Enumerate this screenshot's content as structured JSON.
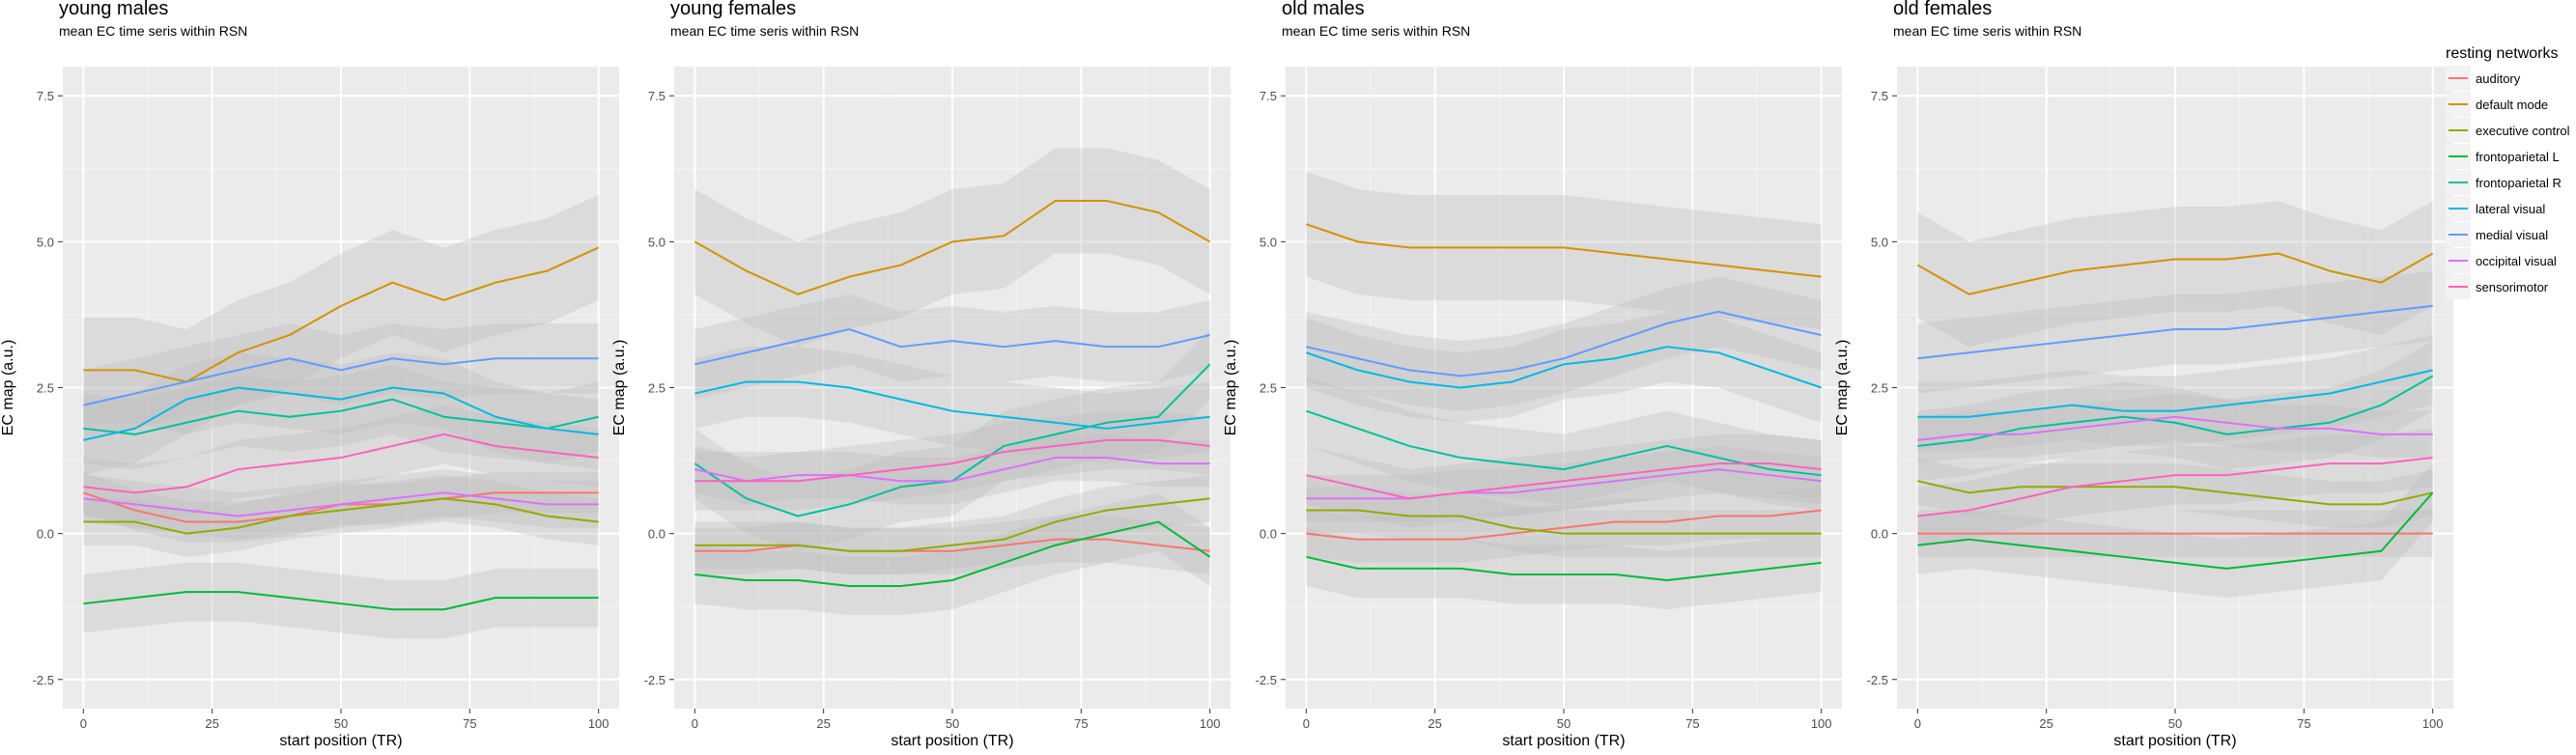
{
  "chart_data": [
    {
      "type": "line",
      "title": "young males",
      "subtitle": "mean EC time seris within RSN",
      "xlabel": "start position (TR)",
      "ylabel": "EC map (a.u.)",
      "xlim": [
        -4,
        104
      ],
      "ylim": [
        -3.0,
        8.0
      ],
      "x_ticks": [
        0,
        25,
        50,
        75,
        100
      ],
      "y_ticks": [
        -2.5,
        0.0,
        2.5,
        5.0,
        7.5
      ],
      "y_tick_labels": [
        "-2.5",
        "0.0",
        "2.5",
        "5.0",
        "7.5"
      ],
      "x": [
        0,
        10,
        20,
        30,
        40,
        50,
        60,
        70,
        80,
        90,
        100
      ],
      "series": [
        {
          "name": "auditory",
          "values": [
            0.7,
            0.4,
            0.2,
            0.2,
            0.3,
            0.5,
            0.5,
            0.6,
            0.7,
            0.7,
            0.7
          ],
          "band": 0.35
        },
        {
          "name": "default mode",
          "values": [
            2.8,
            2.8,
            2.6,
            3.1,
            3.4,
            3.9,
            4.3,
            4.0,
            4.3,
            4.5,
            4.9
          ],
          "band": 0.9
        },
        {
          "name": "executive control",
          "values": [
            0.2,
            0.2,
            0.0,
            0.1,
            0.3,
            0.4,
            0.5,
            0.6,
            0.5,
            0.3,
            0.2
          ],
          "band": 0.4
        },
        {
          "name": "frontoparietal L",
          "values": [
            -1.2,
            -1.1,
            -1.0,
            -1.0,
            -1.1,
            -1.2,
            -1.3,
            -1.3,
            -1.1,
            -1.1,
            -1.1
          ],
          "band": 0.5
        },
        {
          "name": "frontoparietal R",
          "values": [
            1.8,
            1.7,
            1.9,
            2.1,
            2.0,
            2.1,
            2.3,
            2.0,
            1.9,
            1.8,
            2.0
          ],
          "band": 0.6
        },
        {
          "name": "lateral visual",
          "values": [
            1.6,
            1.8,
            2.3,
            2.5,
            2.4,
            2.3,
            2.5,
            2.4,
            2.0,
            1.8,
            1.7
          ],
          "band": 0.6
        },
        {
          "name": "medial visual",
          "values": [
            2.2,
            2.4,
            2.6,
            2.8,
            3.0,
            2.8,
            3.0,
            2.9,
            3.0,
            3.0,
            3.0
          ],
          "band": 0.6
        },
        {
          "name": "occipital visual",
          "values": [
            0.6,
            0.5,
            0.4,
            0.3,
            0.4,
            0.5,
            0.6,
            0.7,
            0.6,
            0.5,
            0.5
          ],
          "band": 0.4
        },
        {
          "name": "sensorimotor",
          "values": [
            0.8,
            0.7,
            0.8,
            1.1,
            1.2,
            1.3,
            1.5,
            1.7,
            1.5,
            1.4,
            1.3
          ],
          "band": 0.5
        }
      ]
    },
    {
      "type": "line",
      "title": "young females",
      "subtitle": "mean EC time seris within RSN",
      "xlabel": "start position (TR)",
      "ylabel": "EC map (a.u.)",
      "xlim": [
        -4,
        104
      ],
      "ylim": [
        -3.0,
        8.0
      ],
      "x_ticks": [
        0,
        25,
        50,
        75,
        100
      ],
      "y_ticks": [
        -2.5,
        0.0,
        2.5,
        5.0,
        7.5
      ],
      "y_tick_labels": [
        "-2.5",
        "0.0",
        "2.5",
        "5.0",
        "7.5"
      ],
      "x": [
        0,
        10,
        20,
        30,
        40,
        50,
        60,
        70,
        80,
        90,
        100
      ],
      "series": [
        {
          "name": "auditory",
          "values": [
            -0.3,
            -0.3,
            -0.2,
            -0.3,
            -0.3,
            -0.3,
            -0.2,
            -0.1,
            -0.1,
            -0.2,
            -0.3
          ],
          "band": 0.4
        },
        {
          "name": "default mode",
          "values": [
            5.0,
            4.5,
            4.1,
            4.4,
            4.6,
            5.0,
            5.1,
            5.7,
            5.7,
            5.5,
            5.0
          ],
          "band": 0.9
        },
        {
          "name": "executive control",
          "values": [
            -0.2,
            -0.2,
            -0.2,
            -0.3,
            -0.3,
            -0.2,
            -0.1,
            0.2,
            0.4,
            0.5,
            0.6
          ],
          "band": 0.4
        },
        {
          "name": "frontoparietal L",
          "values": [
            -0.7,
            -0.8,
            -0.8,
            -0.9,
            -0.9,
            -0.8,
            -0.5,
            -0.2,
            0.0,
            0.2,
            -0.4
          ],
          "band": 0.5
        },
        {
          "name": "frontoparietal R",
          "values": [
            1.2,
            0.6,
            0.3,
            0.5,
            0.8,
            0.9,
            1.5,
            1.7,
            1.9,
            2.0,
            2.9
          ],
          "band": 0.6
        },
        {
          "name": "lateral visual",
          "values": [
            2.4,
            2.6,
            2.6,
            2.5,
            2.3,
            2.1,
            2.0,
            1.9,
            1.8,
            1.9,
            2.0
          ],
          "band": 0.6
        },
        {
          "name": "medial visual",
          "values": [
            2.9,
            3.1,
            3.3,
            3.5,
            3.2,
            3.3,
            3.2,
            3.3,
            3.2,
            3.2,
            3.4
          ],
          "band": 0.6
        },
        {
          "name": "occipital visual",
          "values": [
            1.1,
            0.9,
            1.0,
            1.0,
            0.9,
            0.9,
            1.1,
            1.3,
            1.3,
            1.2,
            1.2
          ],
          "band": 0.4
        },
        {
          "name": "sensorimotor",
          "values": [
            0.9,
            0.9,
            0.9,
            1.0,
            1.1,
            1.2,
            1.4,
            1.5,
            1.6,
            1.6,
            1.5
          ],
          "band": 0.5
        }
      ]
    },
    {
      "type": "line",
      "title": "old males",
      "subtitle": "mean EC time seris within RSN",
      "xlabel": "start position (TR)",
      "ylabel": "EC map (a.u.)",
      "xlim": [
        -4,
        104
      ],
      "ylim": [
        -3.0,
        8.0
      ],
      "x_ticks": [
        0,
        25,
        50,
        75,
        100
      ],
      "y_ticks": [
        -2.5,
        0.0,
        2.5,
        5.0,
        7.5
      ],
      "y_tick_labels": [
        "-2.5",
        "0.0",
        "2.5",
        "5.0",
        "7.5"
      ],
      "x": [
        0,
        10,
        20,
        30,
        40,
        50,
        60,
        70,
        80,
        90,
        100
      ],
      "series": [
        {
          "name": "auditory",
          "values": [
            0.0,
            -0.1,
            -0.1,
            -0.1,
            0.0,
            0.1,
            0.2,
            0.2,
            0.3,
            0.3,
            0.4
          ],
          "band": 0.4
        },
        {
          "name": "default mode",
          "values": [
            5.3,
            5.0,
            4.9,
            4.9,
            4.9,
            4.9,
            4.8,
            4.7,
            4.6,
            4.5,
            4.4
          ],
          "band": 0.9
        },
        {
          "name": "executive control",
          "values": [
            0.4,
            0.4,
            0.3,
            0.3,
            0.1,
            0.0,
            0.0,
            0.0,
            0.0,
            0.0,
            0.0
          ],
          "band": 0.4
        },
        {
          "name": "frontoparietal L",
          "values": [
            -0.4,
            -0.6,
            -0.6,
            -0.6,
            -0.7,
            -0.7,
            -0.7,
            -0.8,
            -0.7,
            -0.6,
            -0.5
          ],
          "band": 0.5
        },
        {
          "name": "frontoparietal R",
          "values": [
            2.1,
            1.8,
            1.5,
            1.3,
            1.2,
            1.1,
            1.3,
            1.5,
            1.3,
            1.1,
            1.0
          ],
          "band": 0.6
        },
        {
          "name": "lateral visual",
          "values": [
            3.1,
            2.8,
            2.6,
            2.5,
            2.6,
            2.9,
            3.0,
            3.2,
            3.1,
            2.8,
            2.5
          ],
          "band": 0.6
        },
        {
          "name": "medial visual",
          "values": [
            3.2,
            3.0,
            2.8,
            2.7,
            2.8,
            3.0,
            3.3,
            3.6,
            3.8,
            3.6,
            3.4
          ],
          "band": 0.6
        },
        {
          "name": "occipital visual",
          "values": [
            0.6,
            0.6,
            0.6,
            0.7,
            0.7,
            0.8,
            0.9,
            1.0,
            1.1,
            1.0,
            0.9
          ],
          "band": 0.4
        },
        {
          "name": "sensorimotor",
          "values": [
            1.0,
            0.8,
            0.6,
            0.7,
            0.8,
            0.9,
            1.0,
            1.1,
            1.2,
            1.2,
            1.1
          ],
          "band": 0.5
        }
      ]
    },
    {
      "type": "line",
      "title": "old females",
      "subtitle": "mean EC time seris within RSN",
      "xlabel": "start position (TR)",
      "ylabel": "EC map (a.u.)",
      "xlim": [
        -4,
        104
      ],
      "ylim": [
        -3.0,
        8.0
      ],
      "x_ticks": [
        0,
        25,
        50,
        75,
        100
      ],
      "y_ticks": [
        -2.5,
        0.0,
        2.5,
        5.0,
        7.5
      ],
      "y_tick_labels": [
        "-2.5",
        "0.0",
        "2.5",
        "5.0",
        "7.5"
      ],
      "x": [
        0,
        10,
        20,
        30,
        40,
        50,
        60,
        70,
        80,
        90,
        100
      ],
      "series": [
        {
          "name": "auditory",
          "values": [
            0.0,
            0.0,
            0.0,
            0.0,
            0.0,
            0.0,
            0.0,
            0.0,
            0.0,
            0.0,
            0.0
          ],
          "band": 0.4
        },
        {
          "name": "default mode",
          "values": [
            4.6,
            4.1,
            4.3,
            4.5,
            4.6,
            4.7,
            4.7,
            4.8,
            4.5,
            4.3,
            4.8
          ],
          "band": 0.9
        },
        {
          "name": "executive control",
          "values": [
            0.9,
            0.7,
            0.8,
            0.8,
            0.8,
            0.8,
            0.7,
            0.6,
            0.5,
            0.5,
            0.7
          ],
          "band": 0.4
        },
        {
          "name": "frontoparietal L",
          "values": [
            -0.2,
            -0.1,
            -0.2,
            -0.3,
            -0.4,
            -0.5,
            -0.6,
            -0.5,
            -0.4,
            -0.3,
            0.7
          ],
          "band": 0.5
        },
        {
          "name": "frontoparietal R",
          "values": [
            1.5,
            1.6,
            1.8,
            1.9,
            2.0,
            1.9,
            1.7,
            1.8,
            1.9,
            2.2,
            2.7
          ],
          "band": 0.6
        },
        {
          "name": "lateral visual",
          "values": [
            2.0,
            2.0,
            2.1,
            2.2,
            2.1,
            2.1,
            2.2,
            2.3,
            2.4,
            2.6,
            2.8
          ],
          "band": 0.6
        },
        {
          "name": "medial visual",
          "values": [
            3.0,
            3.1,
            3.2,
            3.3,
            3.4,
            3.5,
            3.5,
            3.6,
            3.7,
            3.8,
            3.9
          ],
          "band": 0.6
        },
        {
          "name": "occipital visual",
          "values": [
            1.6,
            1.7,
            1.7,
            1.8,
            1.9,
            2.0,
            1.9,
            1.8,
            1.8,
            1.7,
            1.7
          ],
          "band": 0.4
        },
        {
          "name": "sensorimotor",
          "values": [
            0.3,
            0.4,
            0.6,
            0.8,
            0.9,
            1.0,
            1.0,
            1.1,
            1.2,
            1.2,
            1.3
          ],
          "band": 0.5
        }
      ]
    }
  ],
  "legend": {
    "title": "resting networks",
    "items": [
      {
        "name": "auditory",
        "color": "#F8766D"
      },
      {
        "name": "default mode",
        "color": "#D39200"
      },
      {
        "name": "executive control",
        "color": "#93AA00"
      },
      {
        "name": "frontoparietal L",
        "color": "#00BA38"
      },
      {
        "name": "frontoparietal R",
        "color": "#00C19F"
      },
      {
        "name": "lateral visual",
        "color": "#00B9E3"
      },
      {
        "name": "medial visual",
        "color": "#619CFF"
      },
      {
        "name": "occipital visual",
        "color": "#DB72FB"
      },
      {
        "name": "sensorimotor",
        "color": "#FF61C3"
      }
    ]
  },
  "colors": {
    "panel_background": "#EBEBEB",
    "grid_major": "#FFFFFF",
    "band_fill": "#BDBDBD",
    "axis_text": "#4D4D4D"
  }
}
